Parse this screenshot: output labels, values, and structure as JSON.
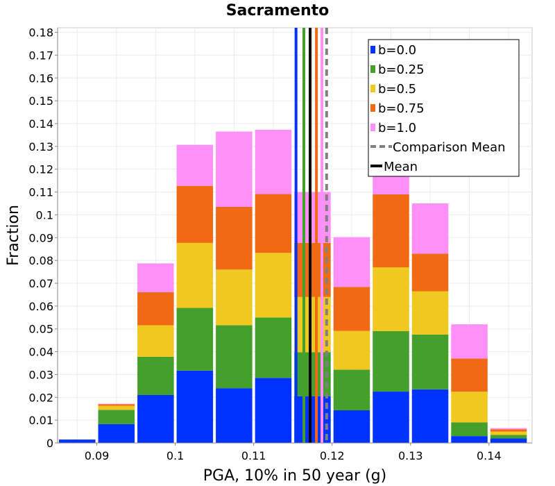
{
  "chart_data": {
    "type": "bar",
    "subtype": "stacked-histogram",
    "title": "Sacramento",
    "xlabel": "PGA, 10% in 50 year (g)",
    "ylabel": "Fraction",
    "xlim": [
      0.085,
      0.1455
    ],
    "ylim": [
      0,
      0.182
    ],
    "grid": true,
    "legend_position": "top-right",
    "bin_width": 0.005,
    "x_ticks": [
      "0.09",
      "0.1",
      "0.11",
      "0.12",
      "0.13",
      "0.14"
    ],
    "x_tick_values": [
      0.09,
      0.1,
      0.11,
      0.12,
      0.13,
      0.14
    ],
    "y_ticks": [
      "0",
      "0.01",
      "0.02",
      "0.03",
      "0.04",
      "0.05",
      "0.06",
      "0.07",
      "0.08",
      "0.09",
      "0.1",
      "0.11",
      "0.12",
      "0.13",
      "0.14",
      "0.15",
      "0.16",
      "0.17",
      "0.18"
    ],
    "y_tick_values": [
      0,
      0.01,
      0.02,
      0.03,
      0.04,
      0.05,
      0.06,
      0.07,
      0.08,
      0.09,
      0.1,
      0.11,
      0.12,
      0.13,
      0.14,
      0.15,
      0.16,
      0.17,
      0.18
    ],
    "bins": [
      0.0875,
      0.0925,
      0.0975,
      0.1025,
      0.1075,
      0.1125,
      0.1175,
      0.1225,
      0.1275,
      0.1325,
      0.1375,
      0.1425
    ],
    "series": [
      {
        "name": "b=0.0",
        "color": "#0033ff",
        "values": [
          0.0015,
          0.0083,
          0.021,
          0.0317,
          0.024,
          0.0285,
          0.0205,
          0.0143,
          0.0225,
          0.0235,
          0.003,
          0.002
        ]
      },
      {
        "name": "b=0.25",
        "color": "#44a02a",
        "values": [
          0.0,
          0.0062,
          0.0168,
          0.0275,
          0.0276,
          0.0265,
          0.0193,
          0.0178,
          0.0265,
          0.024,
          0.006,
          0.0015
        ]
      },
      {
        "name": "b=0.5",
        "color": "#f0c820",
        "values": [
          0.0,
          0.0018,
          0.0138,
          0.0285,
          0.0244,
          0.0283,
          0.0242,
          0.017,
          0.028,
          0.019,
          0.0135,
          0.0015
        ]
      },
      {
        "name": "b=0.75",
        "color": "#f06a15",
        "values": [
          0.0,
          0.0007,
          0.0145,
          0.025,
          0.0275,
          0.0258,
          0.0237,
          0.0193,
          0.032,
          0.0165,
          0.0145,
          0.001
        ]
      },
      {
        "name": "b=1.0",
        "color": "#ff90f8",
        "values": [
          0.0,
          0.0002,
          0.0126,
          0.018,
          0.033,
          0.0282,
          0.0223,
          0.0218,
          0.0255,
          0.022,
          0.015,
          0.0005
        ]
      }
    ],
    "mean_lines": [
      {
        "name": "b=0.0",
        "color": "#0033ff",
        "x": 0.1154
      },
      {
        "name": "b=0.25",
        "color": "#44a02a",
        "x": 0.1164
      },
      {
        "name": "b=0.5",
        "color": "#f0c820",
        "x": 0.1172
      },
      {
        "name": "b=0.75",
        "color": "#f06a15",
        "x": 0.118
      },
      {
        "name": "b=1.0",
        "color": "#ff90f8",
        "x": 0.1187
      }
    ],
    "mean": {
      "name": "Mean",
      "color": "#000000",
      "x": 0.1172
    },
    "comparison_mean": {
      "name": "Comparison Mean",
      "color": "#808080",
      "x": 0.1193
    },
    "legend": [
      {
        "label": "b=0.0",
        "color": "#0033ff",
        "kind": "box"
      },
      {
        "label": "b=0.25",
        "color": "#44a02a",
        "kind": "box"
      },
      {
        "label": "b=0.5",
        "color": "#f0c820",
        "kind": "box"
      },
      {
        "label": "b=0.75",
        "color": "#f06a15",
        "kind": "box"
      },
      {
        "label": "b=1.0",
        "color": "#ff90f8",
        "kind": "box"
      },
      {
        "label": "Comparison Mean",
        "color": "#808080",
        "kind": "dashed"
      },
      {
        "label": "Mean",
        "color": "#000000",
        "kind": "line"
      }
    ]
  }
}
